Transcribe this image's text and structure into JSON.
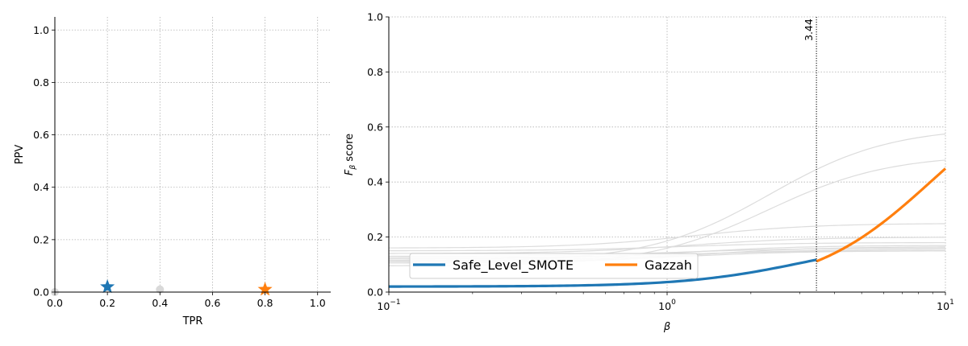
{
  "chart_data": [
    {
      "type": "scatter",
      "xlabel": "TPR",
      "ylabel": "PPV",
      "xlim": [
        0.0,
        1.05
      ],
      "ylim": [
        0.0,
        1.05
      ],
      "grid": true,
      "x_ticks": [
        "0.0",
        "0.2",
        "0.4",
        "0.6",
        "0.8",
        "1.0"
      ],
      "y_ticks": [
        "0.0",
        "0.2",
        "0.4",
        "0.6",
        "0.8",
        "1.0"
      ],
      "background_points": [
        {
          "x": 0.0,
          "y": 0.0
        },
        {
          "x": 0.4,
          "y": 0.01
        }
      ],
      "highlight_points": [
        {
          "x": 0.2,
          "y": 0.02,
          "marker": "star",
          "color": "#1f77b4"
        },
        {
          "x": 0.8,
          "y": 0.01,
          "marker": "star",
          "color": "#ff7f0e"
        }
      ]
    },
    {
      "type": "line",
      "xscale": "log",
      "xlabel": "β",
      "ylabel_main": "F",
      "ylabel_sub": "β",
      "ylabel_rest": " score",
      "xlim": [
        0.1,
        10
      ],
      "ylim": [
        0.0,
        1.0
      ],
      "grid": true,
      "x_ticks": [
        {
          "base": "10",
          "exp": "−1",
          "value": 0.1
        },
        {
          "base": "10",
          "exp": "0",
          "value": 1
        },
        {
          "base": "10",
          "exp": "1",
          "value": 10
        }
      ],
      "y_ticks": [
        "0.0",
        "0.2",
        "0.4",
        "0.6",
        "0.8",
        "1.0"
      ],
      "crossover": {
        "beta": 3.44,
        "label": "3.44"
      },
      "background_curves": [
        {
          "tpr": 0.6,
          "ppv": 0.11
        },
        {
          "tpr": 0.25,
          "ppv": 0.16
        },
        {
          "tpr": 0.5,
          "ppv": 0.095
        },
        {
          "tpr": 0.2,
          "ppv": 0.14
        },
        {
          "tpr": 0.18,
          "ppv": 0.15
        },
        {
          "tpr": 0.16,
          "ppv": 0.13
        },
        {
          "tpr": 0.17,
          "ppv": 0.12
        },
        {
          "tpr": 0.15,
          "ppv": 0.11
        },
        {
          "tpr": 0.15,
          "ppv": 0.125
        },
        {
          "tpr": 0.165,
          "ppv": 0.105
        },
        {
          "tpr": 0.155,
          "ppv": 0.115
        }
      ],
      "series": [
        {
          "name": "Safe_Level_SMOTE",
          "color": "#1f77b4",
          "tpr": 0.2,
          "ppv": 0.02,
          "beta_range": [
            0.1,
            3.44
          ]
        },
        {
          "name": "Gazzah",
          "color": "#ff7f0e",
          "tpr": 0.8,
          "ppv": 0.01,
          "beta_range": [
            3.44,
            10
          ]
        }
      ],
      "legend_position": "lower-left"
    }
  ]
}
